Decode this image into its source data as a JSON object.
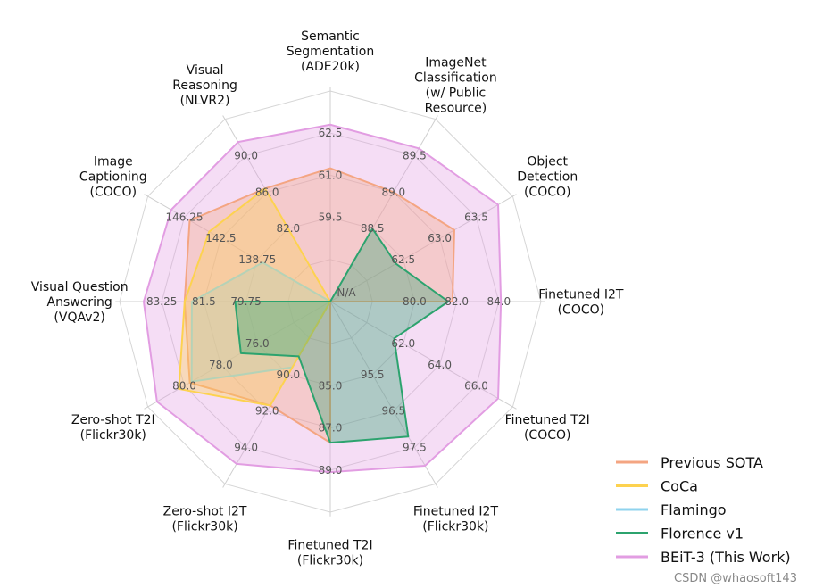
{
  "chart_data": {
    "type": "radar",
    "axes": [
      {
        "label": [
          "Semantic",
          "Segmentation",
          "(ADE20k)"
        ],
        "ticks": [
          "59.5",
          "61.0",
          "62.5"
        ]
      },
      {
        "label": [
          "ImageNet",
          "Classification",
          "(w/ Public",
          "Resource)"
        ],
        "ticks": [
          "88.5",
          "89.0",
          "89.5"
        ]
      },
      {
        "label": [
          "Object",
          "Detection",
          "(COCO)"
        ],
        "ticks": [
          "62.5",
          "63.0",
          "63.5"
        ]
      },
      {
        "label": [
          "Finetuned I2T",
          "(COCO)"
        ],
        "ticks": [
          "80.0",
          "82.0",
          "84.0"
        ]
      },
      {
        "label": [
          "Finetuned T2I",
          "(COCO)"
        ],
        "ticks": [
          "62.0",
          "64.0",
          "66.0"
        ]
      },
      {
        "label": [
          "Finetuned I2T",
          "(Flickr30k)"
        ],
        "ticks": [
          "95.5",
          "96.5",
          "97.5"
        ]
      },
      {
        "label": [
          "Finetuned T2I",
          "(Flickr30k)"
        ],
        "ticks": [
          "85.0",
          "87.0",
          "89.0"
        ]
      },
      {
        "label": [
          "Zero-shot I2T",
          "(Flickr30k)"
        ],
        "ticks": [
          "90.0",
          "92.0",
          "94.0"
        ]
      },
      {
        "label": [
          "Zero-shot T2I",
          "(Flickr30k)"
        ],
        "ticks": [
          "76.0",
          "78.0",
          "80.0"
        ]
      },
      {
        "label": [
          "Visual Question",
          "Answering",
          "(VQAv2)"
        ],
        "ticks": [
          "79.75",
          "81.5",
          "83.25"
        ]
      },
      {
        "label": [
          "Image",
          "Captioning",
          "(COCO)"
        ],
        "ticks": [
          "138.75",
          "142.5",
          "146.25"
        ]
      },
      {
        "label": [
          "Visual",
          "Reasoning",
          "(NLVR2)"
        ],
        "ticks": [
          "82.0",
          "86.0",
          "90.0"
        ]
      }
    ],
    "center_label": "N/A",
    "tick_levels": [
      0.4,
      0.6,
      0.8
    ],
    "series": [
      {
        "name": "Previous SOTA",
        "color": "#f4a582",
        "values": [
          61.25,
          89.0,
          63.2,
          81.8,
          null,
          null,
          87.7,
          91.7,
          79.7,
          82.3,
          145.7,
          86.4
        ]
      },
      {
        "name": "CoCa",
        "color": "#fdd24f",
        "values": [
          null,
          null,
          null,
          null,
          null,
          null,
          null,
          91.7,
          80.3,
          82.3,
          143.7,
          86.4
        ]
      },
      {
        "name": "Flamingo",
        "color": "#8fd3ee",
        "values": [
          null,
          null,
          null,
          null,
          null,
          null,
          null,
          89.6,
          79.6,
          82.0,
          138.2,
          null
        ]
      },
      {
        "name": "Florence v1",
        "color": "#2ca36e",
        "values": [
          null,
          88.5,
          62.4,
          81.6,
          61.5,
          97.2,
          87.7,
          89.0,
          76.9,
          80.2,
          null,
          null
        ]
      },
      {
        "name": "BEiT-3 (This Work)",
        "color": "#e29de2",
        "values": [
          62.8,
          89.6,
          63.8,
          84.1,
          67.2,
          98.0,
          89.1,
          94.9,
          81.5,
          84.0,
          147.6,
          91.5
        ]
      }
    ],
    "legend_position": "bottom-right"
  },
  "watermark": "CSDN @whaosoft143"
}
